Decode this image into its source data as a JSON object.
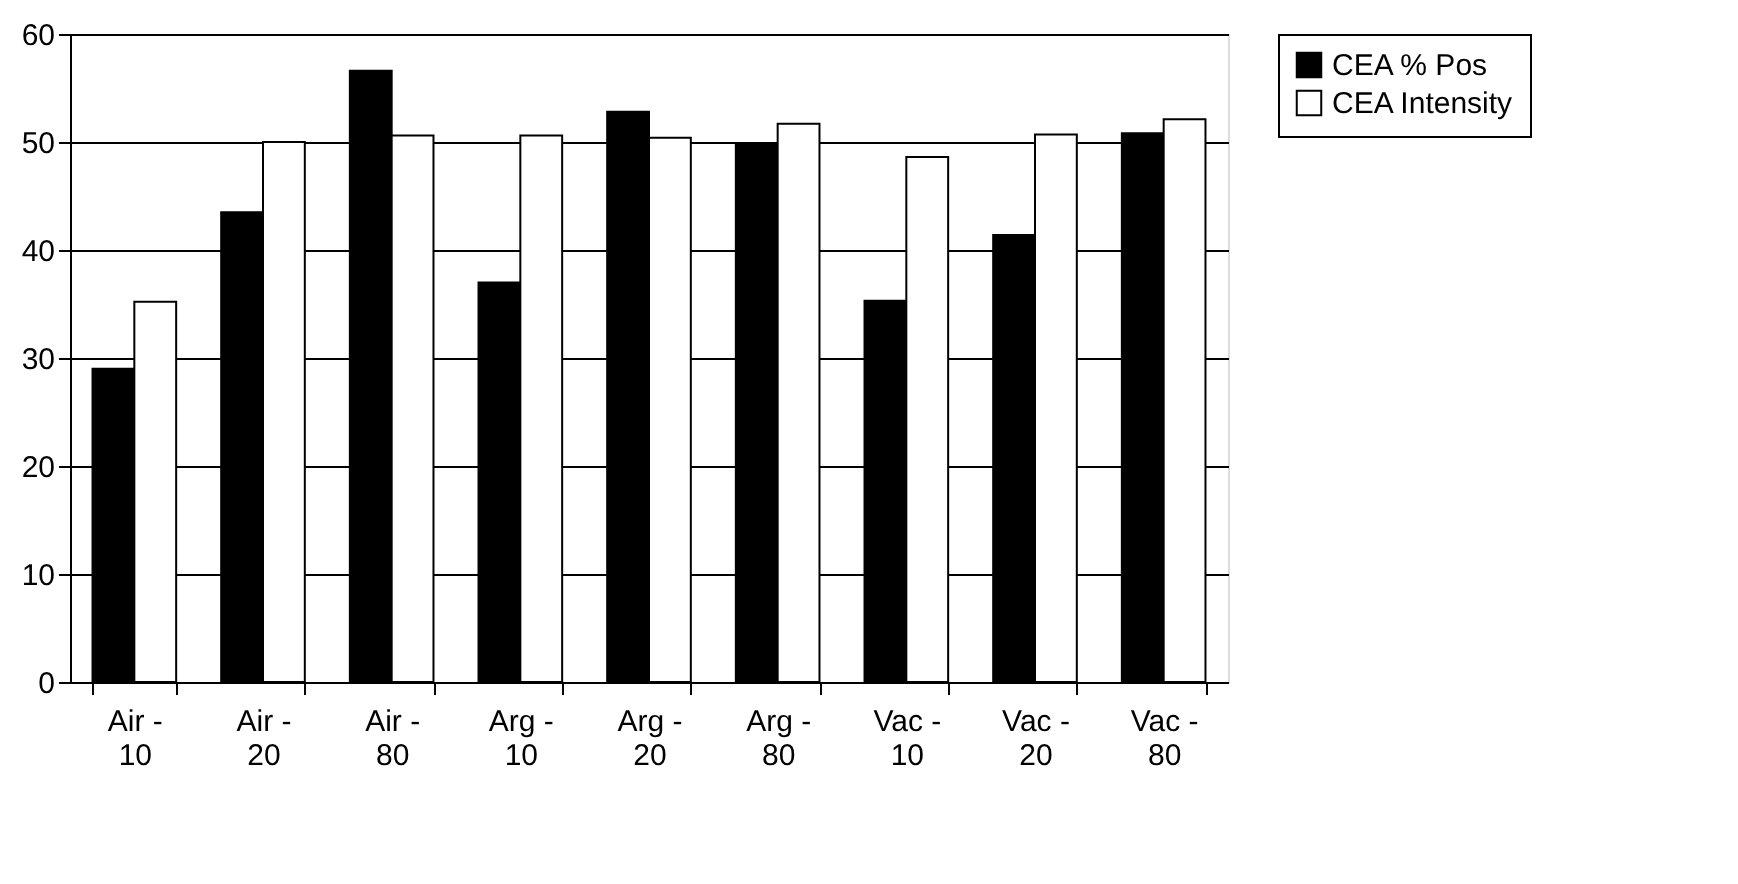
{
  "chart_data": {
    "type": "bar",
    "categories": [
      "Air - 10",
      "Air - 20",
      "Air - 80",
      "Arg - 10",
      "Arg - 20",
      "Arg - 80",
      "Vac - 10",
      "Vac - 20",
      "Vac - 80"
    ],
    "series": [
      {
        "name": "CEA % Pos",
        "color": "#000000",
        "values": [
          29.0,
          43.5,
          56.6,
          37.0,
          52.8,
          49.8,
          35.3,
          41.4,
          50.8
        ]
      },
      {
        "name": "CEA Intensity",
        "color": "#ffffff",
        "values": [
          35.2,
          50.0,
          50.6,
          50.6,
          50.4,
          51.7,
          48.6,
          50.7,
          52.1
        ]
      }
    ],
    "ylim": [
      0,
      60
    ],
    "yticks": [
      0,
      10,
      20,
      30,
      40,
      50,
      60
    ],
    "grid": "y",
    "legend": "right"
  }
}
